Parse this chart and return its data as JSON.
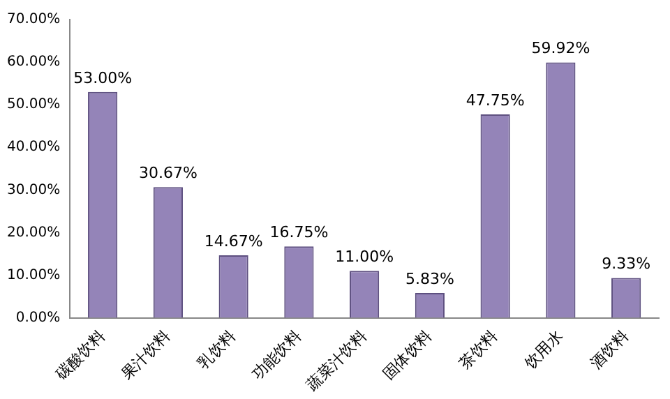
{
  "chart_data": {
    "type": "bar",
    "categories": [
      "碳酸饮料",
      "果汁饮料",
      "乳饮料",
      "功能饮料",
      "蔬菜汁饮料",
      "固体饮料",
      "茶饮料",
      "饮用水",
      "酒饮料"
    ],
    "values": [
      53.0,
      30.67,
      14.67,
      16.75,
      11.0,
      5.83,
      47.75,
      59.92,
      9.33
    ],
    "value_labels": [
      "53.00%",
      "30.67%",
      "14.67%",
      "16.75%",
      "11.00%",
      "5.83%",
      "47.75%",
      "59.92%",
      "9.33%"
    ],
    "color": "#9484b8",
    "ylim": [
      0,
      70
    ],
    "yticks": [
      {
        "value": 0,
        "label": "0.00%"
      },
      {
        "value": 10,
        "label": "10.00%"
      },
      {
        "value": 20,
        "label": "20.00%"
      },
      {
        "value": 30,
        "label": "30.00%"
      },
      {
        "value": 40,
        "label": "40.00%"
      },
      {
        "value": 50,
        "label": "50.00%"
      },
      {
        "value": 60,
        "label": "60.00%"
      },
      {
        "value": 70,
        "label": "70.00%"
      }
    ],
    "grid": false,
    "legend": false
  }
}
